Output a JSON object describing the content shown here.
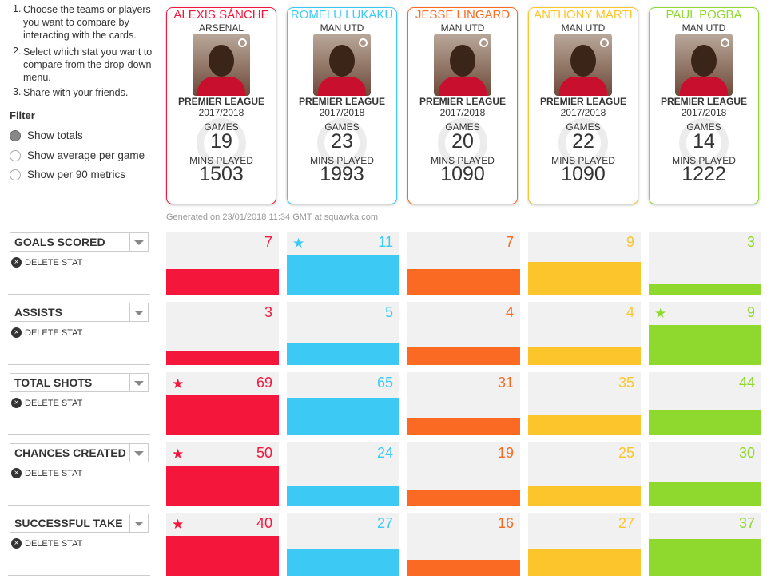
{
  "instructions": [
    "Choose the teams or players you want to compare by interacting with the cards.",
    "Select which stat you want to compare from the drop-down menu.",
    "Share with your friends."
  ],
  "filter": {
    "title": "Filter",
    "options": [
      "Show totals",
      "Show average per game",
      "Show per 90 metrics"
    ],
    "selected": 0
  },
  "players": [
    {
      "name": "ALEXIS SÁNCHE",
      "club": "ARSENAL",
      "league": "PREMIER LEAGUE",
      "season": "2017/2018",
      "games_label": "GAMES",
      "games": 19,
      "mins_label": "MINS PLAYED",
      "mins": 1503,
      "color": "#f5163b"
    },
    {
      "name": "ROMELU LUKAKU",
      "club": "MAN UTD",
      "league": "PREMIER LEAGUE",
      "season": "2017/2018",
      "games_label": "GAMES",
      "games": 23,
      "mins_label": "MINS PLAYED",
      "mins": 1993,
      "color": "#3ccaf5"
    },
    {
      "name": "JESSE LINGARD",
      "club": "MAN UTD",
      "league": "PREMIER LEAGUE",
      "season": "2017/2018",
      "games_label": "GAMES",
      "games": 20,
      "mins_label": "MINS PLAYED",
      "mins": 1090,
      "color": "#fb6a22"
    },
    {
      "name": "ANTHONY MARTI",
      "club": "MAN UTD",
      "league": "PREMIER LEAGUE",
      "season": "2017/2018",
      "games_label": "GAMES",
      "games": 22,
      "mins_label": "MINS PLAYED",
      "mins": 1090,
      "color": "#fdc52c"
    },
    {
      "name": "PAUL POGBA",
      "club": "MAN UTD",
      "league": "PREMIER LEAGUE",
      "season": "2017/2018",
      "games_label": "GAMES",
      "games": 14,
      "mins_label": "MINS PLAYED",
      "mins": 1222,
      "color": "#8fd92e"
    }
  ],
  "generated": "Generated on 23/01/2018 11:34 GMT at squawka.com",
  "stats": [
    {
      "name": "GOALS SCORED",
      "delete": "DELETE STAT",
      "values": [
        7,
        11,
        7,
        9,
        3
      ]
    },
    {
      "name": "ASSISTS",
      "delete": "DELETE STAT",
      "values": [
        3,
        5,
        4,
        4,
        9
      ]
    },
    {
      "name": "TOTAL SHOTS",
      "delete": "DELETE STAT",
      "values": [
        69,
        65,
        31,
        35,
        44
      ]
    },
    {
      "name": "CHANCES CREATED",
      "delete": "DELETE STAT",
      "values": [
        50,
        24,
        19,
        25,
        30
      ]
    },
    {
      "name": "SUCCESSFUL TAKE O",
      "delete": "DELETE STAT",
      "values": [
        40,
        27,
        16,
        27,
        37
      ]
    }
  ]
}
